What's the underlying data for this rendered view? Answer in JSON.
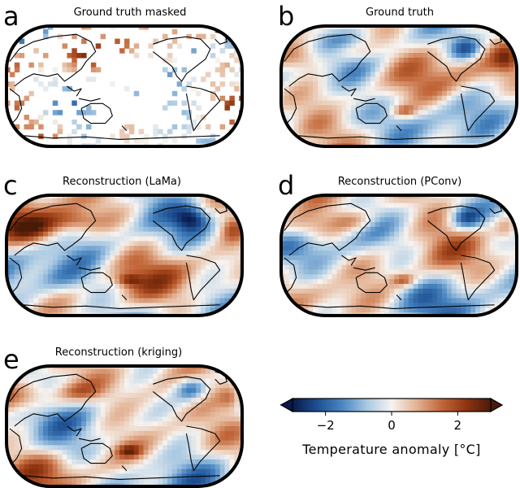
{
  "panels": [
    {
      "id": "a",
      "letter": "a",
      "title": "Ground truth masked",
      "masked": true,
      "seed": 11
    },
    {
      "id": "b",
      "letter": "b",
      "title": "Ground truth",
      "masked": false,
      "seed": 23
    },
    {
      "id": "c",
      "letter": "c",
      "title": "Reconstruction (LaMa)",
      "masked": false,
      "seed": 37
    },
    {
      "id": "d",
      "letter": "d",
      "title": "Reconstruction (PConv)",
      "masked": false,
      "seed": 41
    },
    {
      "id": "e",
      "letter": "e",
      "title": "Reconstruction (kriging)",
      "masked": false,
      "seed": 59
    }
  ],
  "colorbar": {
    "label": "Temperature anomaly [°C]",
    "ticks": [
      "−2",
      "0",
      "2"
    ],
    "tick_values": [
      -2,
      0,
      2
    ],
    "vmin": -3,
    "vmax": 3,
    "extend": "both",
    "colors": [
      "#0a1a4a",
      "#1d4f91",
      "#4a86c1",
      "#a8c8e2",
      "#f6f3f0",
      "#e3b394",
      "#c2673a",
      "#8f3510",
      "#4a1a08"
    ]
  },
  "chart_data": {
    "type": "heatmap",
    "projection": "Robinson (Pacific-centred world map)",
    "quantity": "Temperature anomaly",
    "unit": "°C",
    "color_range": [
      -3,
      3
    ],
    "panels": [
      "Ground truth masked",
      "Ground truth",
      "Reconstruction (LaMa)",
      "Reconstruction (PConv)",
      "Reconstruction (kriging)"
    ]
  }
}
